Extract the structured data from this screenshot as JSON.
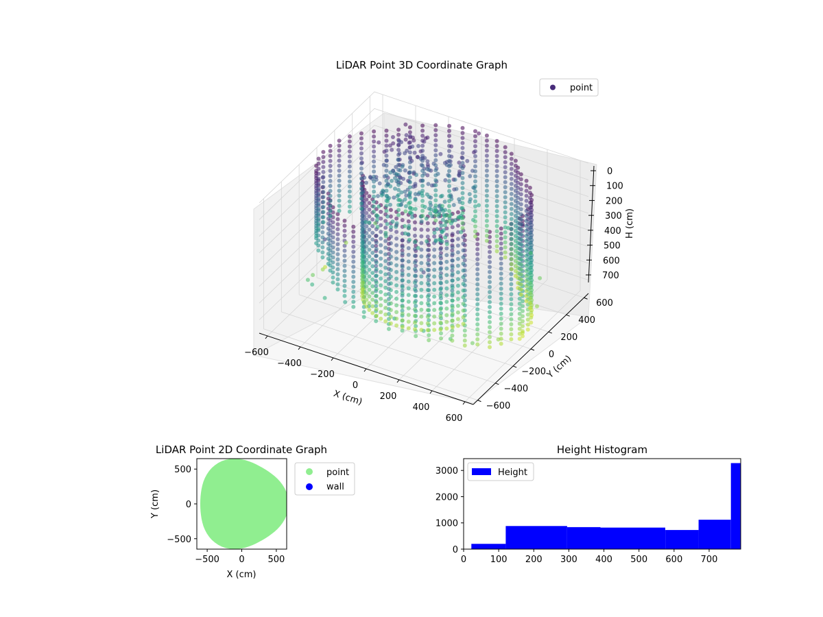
{
  "figure": {
    "background": "#ffffff"
  },
  "chart_data": [
    {
      "type": "scatter",
      "projection": "3d",
      "title": "LiDAR Point 3D Coordinate Graph",
      "xlabel": "X (cm)",
      "ylabel": "Y (cm)",
      "zlabel": "H (cm)",
      "xlim": [
        -650,
        650
      ],
      "ylim": [
        -650,
        650
      ],
      "zlim": [
        0,
        780
      ],
      "z_inverted": true,
      "xticks": [
        "−600",
        "−400",
        "−200",
        "0",
        "200",
        "400",
        "600"
      ],
      "yticks": [
        "−600",
        "−400",
        "−200",
        "0",
        "200",
        "400",
        "600"
      ],
      "zticks": [
        "0",
        "100",
        "200",
        "300",
        "400",
        "500",
        "600",
        "700"
      ],
      "colormap": "viridis",
      "legend": {
        "entries": [
          "point"
        ],
        "placement": "upper right"
      },
      "legend_color": "#472c7a",
      "grid": true,
      "series": [
        {
          "name": "point",
          "description_of_shape": "curved wall surfaces arranged around a circular room, points spanning heights 0 to ~780 cm",
          "sample_points": [
            [
              -560,
              -100,
              650
            ],
            [
              -540,
              -250,
              600
            ],
            [
              -500,
              -380,
              550
            ],
            [
              -420,
              -480,
              500
            ],
            [
              -300,
              -560,
              500
            ],
            [
              -150,
              -610,
              450
            ],
            [
              0,
              -620,
              420
            ],
            [
              150,
              -610,
              450
            ],
            [
              300,
              -560,
              500
            ],
            [
              420,
              -480,
              550
            ],
            [
              500,
              -380,
              600
            ],
            [
              560,
              -200,
              650
            ],
            [
              600,
              0,
              700
            ],
            [
              580,
              200,
              650
            ],
            [
              500,
              380,
              600
            ],
            [
              380,
              500,
              550
            ],
            [
              200,
              580,
              500
            ],
            [
              0,
              620,
              450
            ],
            [
              -200,
              580,
              500
            ],
            [
              -380,
              500,
              550
            ],
            [
              -500,
              380,
              600
            ],
            [
              -580,
              200,
              650
            ],
            [
              -600,
              0,
              700
            ],
            [
              -560,
              -100,
              100
            ],
            [
              -300,
              -560,
              150
            ],
            [
              300,
              -560,
              150
            ],
            [
              600,
              0,
              50
            ],
            [
              0,
              620,
              20
            ],
            [
              -380,
              500,
              30
            ],
            [
              -100,
              300,
              200
            ],
            [
              50,
              250,
              150
            ]
          ]
        }
      ]
    },
    {
      "type": "scatter",
      "title": "LiDAR Point 2D Coordinate Graph",
      "xlabel": "X (cm)",
      "ylabel": "Y (cm)",
      "xlim": [
        -650,
        650
      ],
      "ylim": [
        -650,
        650
      ],
      "xticks": [
        "−500",
        "0",
        "500"
      ],
      "yticks": [
        "−500",
        "0",
        "500"
      ],
      "grid": false,
      "legend": {
        "entries": [
          "point",
          "wall"
        ],
        "placement": "outside right"
      },
      "series": [
        {
          "name": "point",
          "color": "#90ee90",
          "description_of_shape": "filled roughly circular region of radius ~620 cm centered at origin"
        },
        {
          "name": "wall",
          "color": "#0000ff",
          "points": []
        }
      ]
    },
    {
      "type": "bar",
      "subtype": "histogram",
      "title": "Height Histogram",
      "xlabel": "",
      "ylabel": "",
      "xlim": [
        0,
        790
      ],
      "ylim": [
        0,
        3450
      ],
      "xticks": [
        "0",
        "100",
        "200",
        "300",
        "400",
        "500",
        "600",
        "700"
      ],
      "yticks": [
        "0",
        "1000",
        "2000",
        "3000"
      ],
      "color": "#0000ff",
      "legend": {
        "entries": [
          "Height"
        ],
        "placement": "upper left"
      },
      "bins": [
        {
          "start": 22,
          "end": 120,
          "count": 200
        },
        {
          "start": 120,
          "end": 295,
          "count": 880
        },
        {
          "start": 295,
          "end": 390,
          "count": 840
        },
        {
          "start": 390,
          "end": 575,
          "count": 820
        },
        {
          "start": 575,
          "end": 670,
          "count": 730
        },
        {
          "start": 670,
          "end": 762,
          "count": 1120
        },
        {
          "start": 762,
          "end": 790,
          "count": 3280
        }
      ]
    }
  ]
}
